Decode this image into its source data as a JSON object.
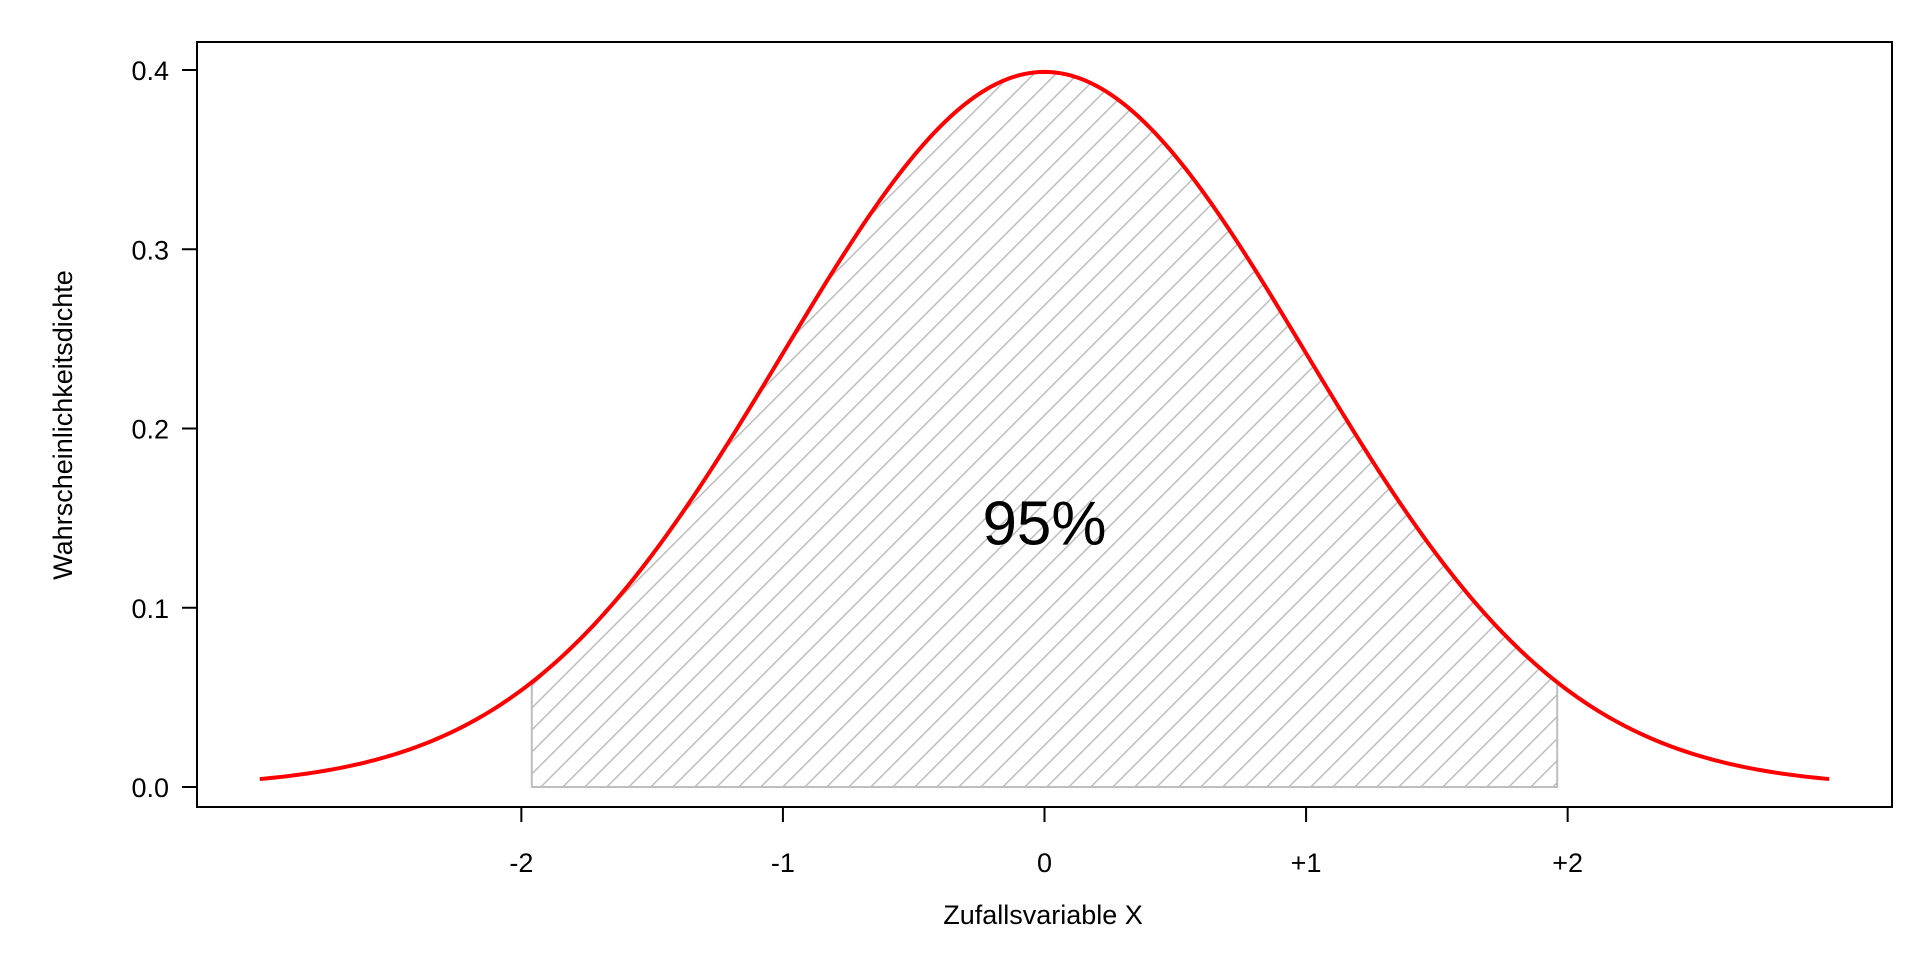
{
  "chart_data": {
    "type": "area",
    "title": "",
    "xlabel": "Zufallsvariable X",
    "ylabel": "Wahrscheinlichkeitsdichte",
    "distribution": "standard normal density",
    "x_range": [
      -3,
      3
    ],
    "xlim": [
      -3.24,
      3.24
    ],
    "ylim": [
      0,
      0.4
    ],
    "x_ticks": [
      -2,
      -1,
      0,
      1,
      2
    ],
    "x_tick_labels": [
      "-2",
      "-1",
      "0",
      "+1",
      "+2"
    ],
    "y_ticks": [
      0.0,
      0.1,
      0.2,
      0.3,
      0.4
    ],
    "y_tick_labels": [
      "0.0",
      "0.1",
      "0.2",
      "0.3",
      "0.4"
    ],
    "series": [
      {
        "x": [
          -3.0,
          -2.8,
          -2.6,
          -2.4,
          -2.2,
          -2.0,
          -1.8,
          -1.6,
          -1.4,
          -1.2,
          -1.0,
          -0.8,
          -0.6,
          -0.4,
          -0.2,
          0.0,
          0.2,
          0.4,
          0.6,
          0.8,
          1.0,
          1.2,
          1.4,
          1.6,
          1.8,
          2.0,
          2.2,
          2.4,
          2.6,
          2.8,
          3.0
        ],
        "y": [
          0.0044,
          0.0079,
          0.0136,
          0.0224,
          0.0355,
          0.054,
          0.079,
          0.1109,
          0.1497,
          0.1942,
          0.242,
          0.2897,
          0.3332,
          0.3683,
          0.391,
          0.3989,
          0.391,
          0.3683,
          0.3332,
          0.2897,
          0.242,
          0.1942,
          0.1497,
          0.1109,
          0.079,
          0.054,
          0.0355,
          0.0224,
          0.0136,
          0.0079,
          0.0044
        ]
      }
    ],
    "shaded_region": {
      "from": -1.96,
      "to": 1.96,
      "pattern": "diagonal hatch",
      "label": "95%"
    },
    "grid": false,
    "legend": "none",
    "colors": {
      "curve": "#ff0000",
      "hatch": "#bebebe",
      "frame": "#000000"
    }
  }
}
